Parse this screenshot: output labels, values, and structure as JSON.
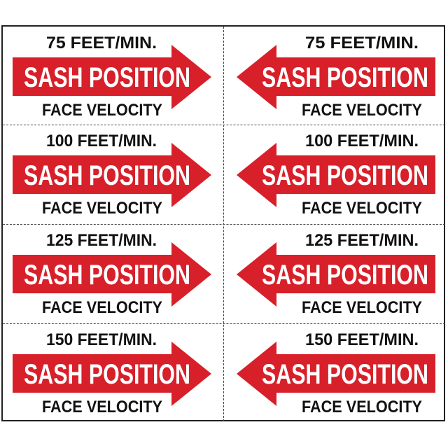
{
  "colors": {
    "arrow_red": "#d7202a",
    "text_black": "#111111",
    "arrow_text": "#ffffff"
  },
  "labels": [
    {
      "rate": "75 FEET/MIN.",
      "arrow_text": "SASH POSITION",
      "caption": "FACE VELOCITY"
    },
    {
      "rate": "100 FEET/MIN.",
      "arrow_text": "SASH POSITION",
      "caption": "FACE VELOCITY"
    },
    {
      "rate": "125 FEET/MIN.",
      "arrow_text": "SASH POSITION",
      "caption": "FACE VELOCITY"
    },
    {
      "rate": "150 FEET/MIN.",
      "arrow_text": "SASH POSITION",
      "caption": "FACE VELOCITY"
    }
  ],
  "arrow_directions": [
    "right",
    "left"
  ]
}
